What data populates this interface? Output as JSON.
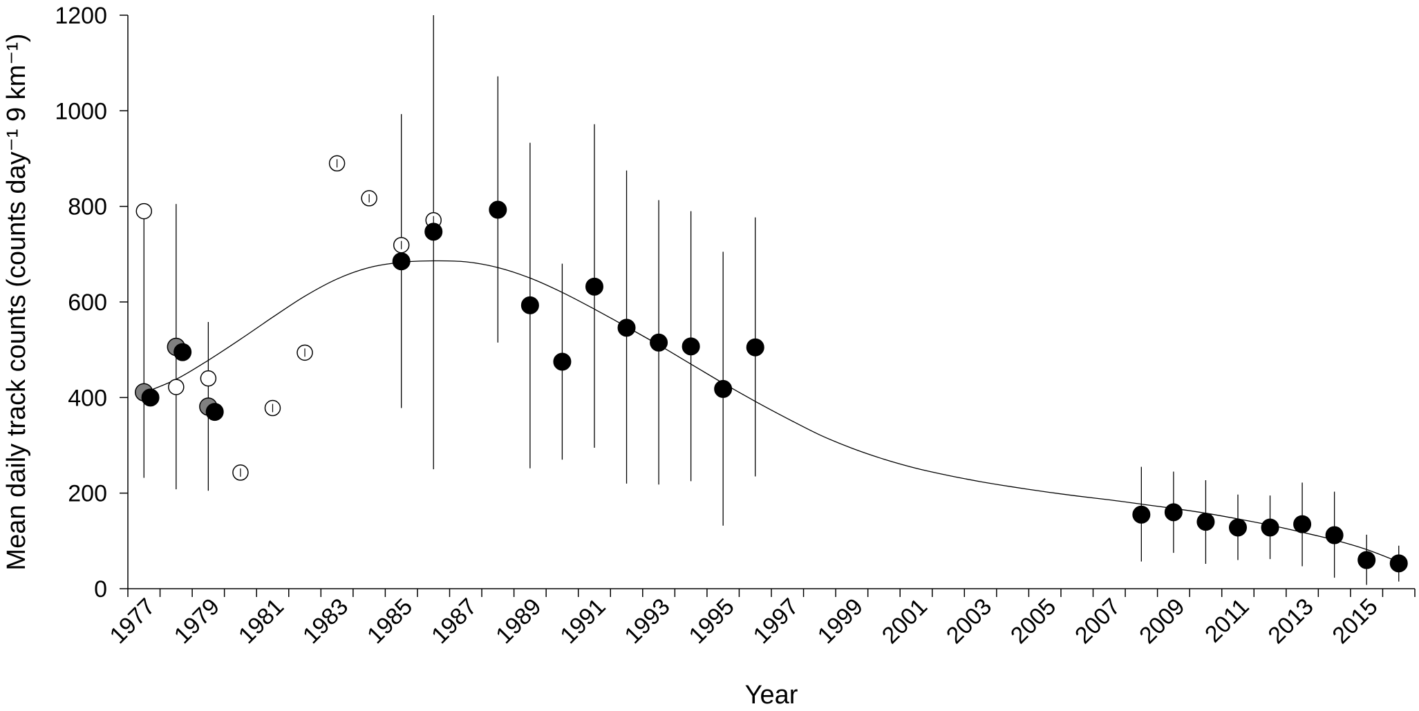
{
  "chart_data": {
    "type": "scatter",
    "xlabel": "Year",
    "ylabel": "Mean daily track counts (counts day⁻¹ 9 km⁻¹)",
    "ylim": [
      0,
      1200
    ],
    "y_ticks": [
      0,
      200,
      400,
      600,
      800,
      1000,
      1200
    ],
    "x_categories": [
      "1977",
      "1978",
      "1979",
      "1980",
      "1981",
      "1982",
      "1983",
      "1984",
      "1985",
      "1986",
      "1987",
      "1988",
      "1989",
      "1990",
      "1991",
      "1992",
      "1993",
      "1994",
      "1995",
      "1996",
      "1997",
      "1998",
      "1999",
      "2000",
      "2001",
      "2002",
      "2003",
      "2004",
      "2005",
      "2006",
      "2007",
      "2008",
      "2009",
      "2010",
      "2011",
      "2012",
      "2013",
      "2014",
      "2015",
      "2016"
    ],
    "x_tick_labels": [
      "1977",
      "1979",
      "1981",
      "1983",
      "1985",
      "1987",
      "1989",
      "1991",
      "1993",
      "1995",
      "1997",
      "1999",
      "2001",
      "2003",
      "2005",
      "2007",
      "2009",
      "2011",
      "2013",
      "2015"
    ],
    "grid": false,
    "legend": "none",
    "colors": {
      "filled": "#000000",
      "grey": "#808080",
      "open": "#ffffff",
      "line": "#000000"
    },
    "series": [
      {
        "marker": "filled",
        "points": [
          {
            "x": 1977.2,
            "y": 400
          },
          {
            "x": 1978.2,
            "y": 495
          },
          {
            "x": 1979.2,
            "y": 370
          },
          {
            "x": 1985.0,
            "y": 685,
            "ylo": 378,
            "yhi": 993
          },
          {
            "x": 1986.0,
            "y": 747,
            "ylo": 250,
            "yhi": 1200
          },
          {
            "x": 1988.0,
            "y": 793,
            "ylo": 515,
            "yhi": 1072
          },
          {
            "x": 1989.0,
            "y": 593,
            "ylo": 252,
            "yhi": 933
          },
          {
            "x": 1990.0,
            "y": 475,
            "ylo": 270,
            "yhi": 680
          },
          {
            "x": 1991.0,
            "y": 632,
            "ylo": 295,
            "yhi": 972
          },
          {
            "x": 1992.0,
            "y": 546,
            "ylo": 220,
            "yhi": 875
          },
          {
            "x": 1993.0,
            "y": 515,
            "ylo": 218,
            "yhi": 813
          },
          {
            "x": 1994.0,
            "y": 507,
            "ylo": 225,
            "yhi": 790
          },
          {
            "x": 1995.0,
            "y": 418,
            "ylo": 132,
            "yhi": 705
          },
          {
            "x": 1996.0,
            "y": 505,
            "ylo": 235,
            "yhi": 777
          },
          {
            "x": 2008.0,
            "y": 155,
            "ylo": 57,
            "yhi": 255
          },
          {
            "x": 2009.0,
            "y": 160,
            "ylo": 75,
            "yhi": 245
          },
          {
            "x": 2010.0,
            "y": 140,
            "ylo": 52,
            "yhi": 227
          },
          {
            "x": 2011.0,
            "y": 128,
            "ylo": 60,
            "yhi": 197
          },
          {
            "x": 2012.0,
            "y": 128,
            "ylo": 62,
            "yhi": 195
          },
          {
            "x": 2013.0,
            "y": 135,
            "ylo": 47,
            "yhi": 222
          },
          {
            "x": 2014.0,
            "y": 112,
            "ylo": 23,
            "yhi": 203
          },
          {
            "x": 2015.0,
            "y": 60,
            "ylo": 8,
            "yhi": 113
          },
          {
            "x": 2016.0,
            "y": 53,
            "ylo": 15,
            "yhi": 90
          }
        ]
      },
      {
        "marker": "grey",
        "points": [
          {
            "x": 1977.0,
            "y": 411
          },
          {
            "x": 1978.0,
            "y": 506
          },
          {
            "x": 1979.0,
            "y": 381
          }
        ]
      },
      {
        "marker": "open",
        "points": [
          {
            "x": 1977.0,
            "y": 790,
            "ylo": 232,
            "yhi": 790
          },
          {
            "x": 1978.0,
            "y": 422,
            "ylo": 208,
            "yhi": 805
          },
          {
            "x": 1979.0,
            "y": 440,
            "ylo": 205,
            "yhi": 558
          },
          {
            "x": 1980.0,
            "y": 243
          },
          {
            "x": 1981.0,
            "y": 378
          },
          {
            "x": 1982.0,
            "y": 494
          },
          {
            "x": 1983.0,
            "y": 890
          },
          {
            "x": 1984.0,
            "y": 817
          },
          {
            "x": 1985.0,
            "y": 719
          },
          {
            "x": 1986.0,
            "y": 771
          }
        ]
      }
    ],
    "trend_line": {
      "x": [
        1977.0,
        1978.0,
        1979.0,
        1980.0,
        1981.0,
        1982.0,
        1983.0,
        1984.0,
        1985.0,
        1986.0,
        1987.0,
        1988.0,
        1989.0,
        1990.0,
        1991.0,
        1992.0,
        1993.0,
        1994.0,
        1995.0,
        1996.0,
        1997.0,
        1998.0,
        1999.0,
        2000.0,
        2001.0,
        2002.0,
        2003.0,
        2004.0,
        2005.0,
        2006.0,
        2007.0,
        2008.0,
        2009.0,
        2010.0,
        2011.0,
        2012.0,
        2013.0,
        2014.0,
        2015.0,
        2016.0
      ],
      "y": [
        410,
        438,
        478,
        522,
        568,
        612,
        648,
        672,
        683,
        686,
        684,
        672,
        650,
        620,
        585,
        548,
        510,
        470,
        430,
        392,
        356,
        322,
        294,
        271,
        252,
        237,
        224,
        213,
        203,
        194,
        186,
        177,
        168,
        158,
        146,
        133,
        118,
        102,
        82,
        56
      ]
    }
  }
}
